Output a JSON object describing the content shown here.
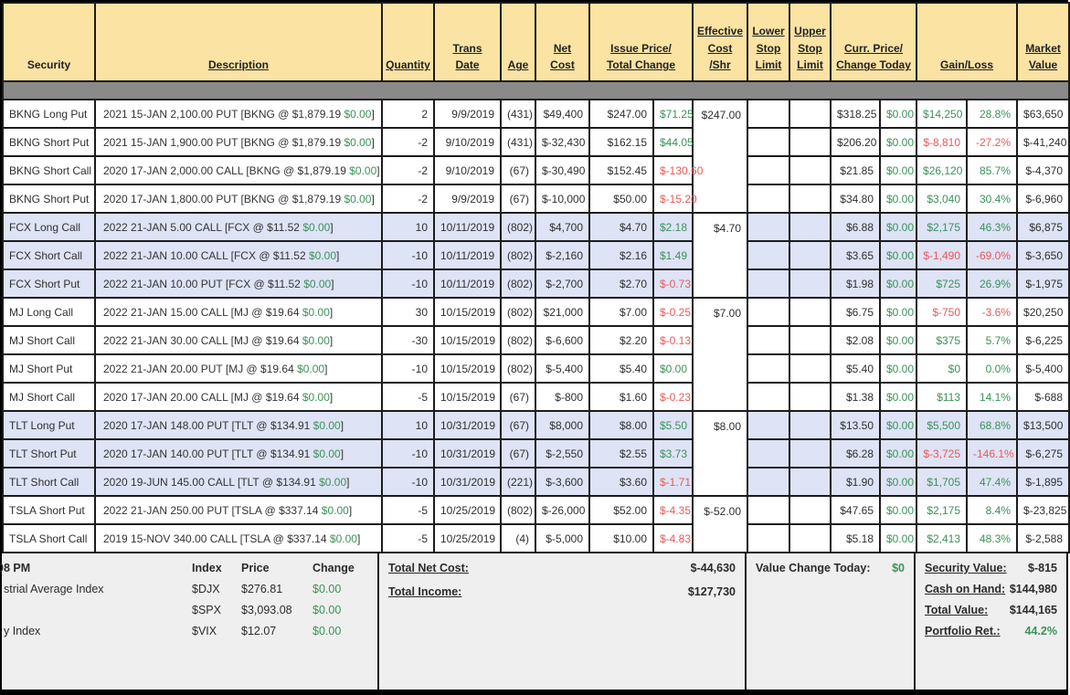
{
  "colors": {
    "header_bg": "#FBE3A4",
    "separator_band": "#8A8A8A",
    "group_shade": "#DEE3F6",
    "positive": "#3B9259",
    "negative": "#EC5757",
    "footer_bg": "#EFEFEF",
    "grid_border": "#1C1C1C"
  },
  "header": {
    "columns": [
      {
        "id": "security",
        "lines": [
          "Security"
        ],
        "span": 1,
        "sortable": false
      },
      {
        "id": "description",
        "lines": [
          "Description"
        ],
        "span": 1,
        "sortable": true
      },
      {
        "id": "quantity",
        "lines": [
          "Quantity"
        ],
        "span": 1,
        "sortable": true
      },
      {
        "id": "trans-date",
        "lines": [
          "Trans",
          "Date"
        ],
        "span": 1,
        "sortable": true
      },
      {
        "id": "age",
        "lines": [
          "Age"
        ],
        "span": 1,
        "sortable": true
      },
      {
        "id": "net-cost",
        "lines": [
          "Net",
          "Cost"
        ],
        "span": 1,
        "sortable": true
      },
      {
        "id": "issue-price-total-change",
        "lines": [
          "Issue Price/",
          "Total Change"
        ],
        "span": 2,
        "sortable": true
      },
      {
        "id": "effective-cost",
        "lines": [
          "Effective",
          "Cost",
          "/Shr"
        ],
        "span": 1,
        "sortable": true
      },
      {
        "id": "lower-stop-limit",
        "lines": [
          "Lower",
          "Stop",
          "Limit"
        ],
        "span": 1,
        "sortable": true
      },
      {
        "id": "upper-stop-limit",
        "lines": [
          "Upper",
          "Stop",
          "Limit"
        ],
        "span": 1,
        "sortable": true
      },
      {
        "id": "curr-price-change-today",
        "lines": [
          "Curr. Price/",
          "Change Today"
        ],
        "span": 2,
        "sortable": true
      },
      {
        "id": "gain-loss",
        "lines": [
          "Gain/Loss"
        ],
        "span": 2,
        "sortable": true
      },
      {
        "id": "market-value",
        "lines": [
          "Market",
          "Value"
        ],
        "span": 1,
        "sortable": true
      }
    ]
  },
  "positions": [
    {
      "security": "BKNG Long Put",
      "description": "2021 15-JAN 2,100.00 PUT [BKNG @ $1,879.19",
      "description_change": "$0.00",
      "description_close": "]",
      "quantity": "2",
      "trans_date": "9/9/2019",
      "age": "(431)",
      "net_cost": "$49,400",
      "issue_price": "$247.00",
      "total_change": "$71.25",
      "total_change_color": "green",
      "effective_cost": "$247.00",
      "group_rows": 4,
      "shaded": false,
      "lower_stop": "",
      "upper_stop": "",
      "curr_price": "$318.25",
      "change_today": "$0.00",
      "gain_loss": "$14,250",
      "gain_loss_color": "green",
      "gain_pct": "28.8%",
      "gain_pct_color": "green",
      "market_value": "$63,650"
    },
    {
      "security": "BKNG Short Put",
      "description": "2021 15-JAN 1,900.00 PUT [BKNG @ $1,879.19",
      "description_change": "$0.00",
      "description_close": "]",
      "quantity": "-2",
      "trans_date": "9/10/2019",
      "age": "(431)",
      "net_cost": "$-32,430",
      "issue_price": "$162.15",
      "total_change": "$44.05",
      "total_change_color": "green",
      "shaded": false,
      "lower_stop": "",
      "upper_stop": "",
      "curr_price": "$206.20",
      "change_today": "$0.00",
      "gain_loss": "$-8,810",
      "gain_loss_color": "red",
      "gain_pct": "-27.2%",
      "gain_pct_color": "red",
      "market_value": "$-41,240"
    },
    {
      "security": "BKNG Short Call",
      "description": "2020 17-JAN 2,000.00 CALL [BKNG @ $1,879.19",
      "description_change": "$0.00",
      "description_close": "]",
      "quantity": "-2",
      "trans_date": "9/10/2019",
      "age": "(67)",
      "net_cost": "$-30,490",
      "issue_price": "$152.45",
      "total_change": "$-130.60",
      "total_change_color": "red",
      "shaded": false,
      "lower_stop": "",
      "upper_stop": "",
      "curr_price": "$21.85",
      "change_today": "$0.00",
      "gain_loss": "$26,120",
      "gain_loss_color": "green",
      "gain_pct": "85.7%",
      "gain_pct_color": "green",
      "market_value": "$-4,370"
    },
    {
      "security": "BKNG Short Put",
      "description": "2020 17-JAN 1,800.00 PUT [BKNG @ $1,879.19",
      "description_change": "$0.00",
      "description_close": "]",
      "quantity": "-2",
      "trans_date": "9/9/2019",
      "age": "(67)",
      "net_cost": "$-10,000",
      "issue_price": "$50.00",
      "total_change": "$-15.20",
      "total_change_color": "red",
      "shaded": false,
      "lower_stop": "",
      "upper_stop": "",
      "curr_price": "$34.80",
      "change_today": "$0.00",
      "gain_loss": "$3,040",
      "gain_loss_color": "green",
      "gain_pct": "30.4%",
      "gain_pct_color": "green",
      "market_value": "$-6,960"
    },
    {
      "security": "FCX Long Call",
      "description": "2022 21-JAN 5.00 CALL [FCX @ $11.52",
      "description_change": "$0.00",
      "description_close": "]",
      "quantity": "10",
      "trans_date": "10/11/2019",
      "age": "(802)",
      "net_cost": "$4,700",
      "issue_price": "$4.70",
      "total_change": "$2.18",
      "total_change_color": "green",
      "effective_cost": "$4.70",
      "group_rows": 3,
      "shaded": true,
      "lower_stop": "",
      "upper_stop": "",
      "curr_price": "$6.88",
      "change_today": "$0.00",
      "gain_loss": "$2,175",
      "gain_loss_color": "green",
      "gain_pct": "46.3%",
      "gain_pct_color": "green",
      "market_value": "$6,875"
    },
    {
      "security": "FCX Short Call",
      "description": "2022 21-JAN 10.00 CALL [FCX @ $11.52",
      "description_change": "$0.00",
      "description_close": "]",
      "quantity": "-10",
      "trans_date": "10/11/2019",
      "age": "(802)",
      "net_cost": "$-2,160",
      "issue_price": "$2.16",
      "total_change": "$1.49",
      "total_change_color": "green",
      "shaded": true,
      "lower_stop": "",
      "upper_stop": "",
      "curr_price": "$3.65",
      "change_today": "$0.00",
      "gain_loss": "$-1,490",
      "gain_loss_color": "red",
      "gain_pct": "-69.0%",
      "gain_pct_color": "red",
      "market_value": "$-3,650"
    },
    {
      "security": "FCX Short Put",
      "description": "2022 21-JAN 10.00 PUT [FCX @ $11.52",
      "description_change": "$0.00",
      "description_close": "]",
      "quantity": "-10",
      "trans_date": "10/11/2019",
      "age": "(802)",
      "net_cost": "$-2,700",
      "issue_price": "$2.70",
      "total_change": "$-0.73",
      "total_change_color": "red",
      "shaded": true,
      "lower_stop": "",
      "upper_stop": "",
      "curr_price": "$1.98",
      "change_today": "$0.00",
      "gain_loss": "$725",
      "gain_loss_color": "green",
      "gain_pct": "26.9%",
      "gain_pct_color": "green",
      "market_value": "$-1,975"
    },
    {
      "security": "MJ Long Call",
      "description": "2022 21-JAN 15.00 CALL [MJ @ $19.64",
      "description_change": "$0.00",
      "description_close": "]",
      "quantity": "30",
      "trans_date": "10/15/2019",
      "age": "(802)",
      "net_cost": "$21,000",
      "issue_price": "$7.00",
      "total_change": "$-0.25",
      "total_change_color": "red",
      "effective_cost": "$7.00",
      "group_rows": 4,
      "shaded": false,
      "lower_stop": "",
      "upper_stop": "",
      "curr_price": "$6.75",
      "change_today": "$0.00",
      "gain_loss": "$-750",
      "gain_loss_color": "red",
      "gain_pct": "-3.6%",
      "gain_pct_color": "red",
      "market_value": "$20,250"
    },
    {
      "security": "MJ Short Call",
      "description": "2022 21-JAN 30.00 CALL [MJ @ $19.64",
      "description_change": "$0.00",
      "description_close": "]",
      "quantity": "-30",
      "trans_date": "10/15/2019",
      "age": "(802)",
      "net_cost": "$-6,600",
      "issue_price": "$2.20",
      "total_change": "$-0.13",
      "total_change_color": "red",
      "shaded": false,
      "lower_stop": "",
      "upper_stop": "",
      "curr_price": "$2.08",
      "change_today": "$0.00",
      "gain_loss": "$375",
      "gain_loss_color": "green",
      "gain_pct": "5.7%",
      "gain_pct_color": "green",
      "market_value": "$-6,225"
    },
    {
      "security": "MJ Short Put",
      "description": "2022 21-JAN 20.00 PUT [MJ @ $19.64",
      "description_change": "$0.00",
      "description_close": "]",
      "quantity": "-10",
      "trans_date": "10/15/2019",
      "age": "(802)",
      "net_cost": "$-5,400",
      "issue_price": "$5.40",
      "total_change": "$0.00",
      "total_change_color": "green",
      "shaded": false,
      "lower_stop": "",
      "upper_stop": "",
      "curr_price": "$5.40",
      "change_today": "$0.00",
      "gain_loss": "$0",
      "gain_loss_color": "green",
      "gain_pct": "0.0%",
      "gain_pct_color": "green",
      "market_value": "$-5,400"
    },
    {
      "security": "MJ Short Call",
      "description": "2020 17-JAN 20.00 CALL [MJ @ $19.64",
      "description_change": "$0.00",
      "description_close": "]",
      "quantity": "-5",
      "trans_date": "10/15/2019",
      "age": "(67)",
      "net_cost": "$-800",
      "issue_price": "$1.60",
      "total_change": "$-0.23",
      "total_change_color": "red",
      "shaded": false,
      "lower_stop": "",
      "upper_stop": "",
      "curr_price": "$1.38",
      "change_today": "$0.00",
      "gain_loss": "$113",
      "gain_loss_color": "green",
      "gain_pct": "14.1%",
      "gain_pct_color": "green",
      "market_value": "$-688"
    },
    {
      "security": "TLT Long Put",
      "description": "2020 17-JAN 148.00 PUT [TLT @ $134.91",
      "description_change": "$0.00",
      "description_close": "]",
      "quantity": "10",
      "trans_date": "10/31/2019",
      "age": "(67)",
      "net_cost": "$8,000",
      "issue_price": "$8.00",
      "total_change": "$5.50",
      "total_change_color": "green",
      "effective_cost": "$8.00",
      "group_rows": 3,
      "shaded": true,
      "lower_stop": "",
      "upper_stop": "",
      "curr_price": "$13.50",
      "change_today": "$0.00",
      "gain_loss": "$5,500",
      "gain_loss_color": "green",
      "gain_pct": "68.8%",
      "gain_pct_color": "green",
      "market_value": "$13,500"
    },
    {
      "security": "TLT Short Put",
      "description": "2020 17-JAN 140.00 PUT [TLT @ $134.91",
      "description_change": "$0.00",
      "description_close": "]",
      "quantity": "-10",
      "trans_date": "10/31/2019",
      "age": "(67)",
      "net_cost": "$-2,550",
      "issue_price": "$2.55",
      "total_change": "$3.73",
      "total_change_color": "green",
      "shaded": true,
      "lower_stop": "",
      "upper_stop": "",
      "curr_price": "$6.28",
      "change_today": "$0.00",
      "gain_loss": "$-3,725",
      "gain_loss_color": "red",
      "gain_pct": "-146.1%",
      "gain_pct_color": "red",
      "market_value": "$-6,275"
    },
    {
      "security": "TLT Short Call",
      "description": "2020 19-JUN 145.00 CALL [TLT @ $134.91",
      "description_change": "$0.00",
      "description_close": "]",
      "quantity": "-10",
      "trans_date": "10/31/2019",
      "age": "(221)",
      "net_cost": "$-3,600",
      "issue_price": "$3.60",
      "total_change": "$-1.71",
      "total_change_color": "red",
      "shaded": true,
      "lower_stop": "",
      "upper_stop": "",
      "curr_price": "$1.90",
      "change_today": "$0.00",
      "gain_loss": "$1,705",
      "gain_loss_color": "green",
      "gain_pct": "47.4%",
      "gain_pct_color": "green",
      "market_value": "$-1,895"
    },
    {
      "security": "TSLA Short Put",
      "description": "2022 21-JAN 250.00 PUT [TSLA @ $337.14",
      "description_change": "$0.00",
      "description_close": "]",
      "quantity": "-5",
      "trans_date": "10/25/2019",
      "age": "(802)",
      "net_cost": "$-26,000",
      "issue_price": "$52.00",
      "total_change": "$-4.35",
      "total_change_color": "red",
      "effective_cost": "$-52.00",
      "group_rows": 2,
      "shaded": false,
      "lower_stop": "",
      "upper_stop": "",
      "curr_price": "$47.65",
      "change_today": "$0.00",
      "gain_loss": "$2,175",
      "gain_loss_color": "green",
      "gain_pct": "8.4%",
      "gain_pct_color": "green",
      "market_value": "$-23,825"
    },
    {
      "security": "TSLA Short Call",
      "description": "2019 15-NOV 340.00 CALL [TSLA @ $337.14",
      "description_change": "$0.00",
      "description_close": "]",
      "quantity": "-5",
      "trans_date": "10/25/2019",
      "age": "(4)",
      "net_cost": "$-5,000",
      "issue_price": "$10.00",
      "total_change": "$-4.83",
      "total_change_color": "red",
      "shaded": false,
      "lower_stop": "",
      "upper_stop": "",
      "curr_price": "$5.18",
      "change_today": "$0.00",
      "gain_loss": "$2,413",
      "gain_loss_color": "green",
      "gain_pct": "48.3%",
      "gain_pct_color": "green",
      "market_value": "$-2,588"
    }
  ],
  "footer": {
    "time": "08 PM",
    "index_headers": {
      "index": "Index",
      "price": "Price",
      "change": "Change"
    },
    "indices": [
      {
        "label": "strial Average Index",
        "symbol": "$DJX",
        "price": "$276.81",
        "change": "$0.00"
      },
      {
        "label": "",
        "symbol": "$SPX",
        "price": "$3,093.08",
        "change": "$0.00"
      },
      {
        "label": "y Index",
        "symbol": "$VIX",
        "price": "$12.07",
        "change": "$0.00"
      }
    ],
    "totals": {
      "net_cost_label": "Total Net Cost:",
      "net_cost": "$-44,630",
      "income_label": "Total Income:",
      "income": "$127,730"
    },
    "value_change": {
      "label": "Value Change Today:",
      "value": "$0"
    },
    "summary": [
      {
        "label": "Security Value:",
        "value": "$-815",
        "green": false
      },
      {
        "label": "Cash on Hand:",
        "value": "$144,980",
        "green": false
      },
      {
        "label": "Total Value:",
        "value": "$144,165",
        "green": false
      },
      {
        "label": "Portfolio Ret.:",
        "value": "44.2%",
        "green": true
      }
    ]
  }
}
